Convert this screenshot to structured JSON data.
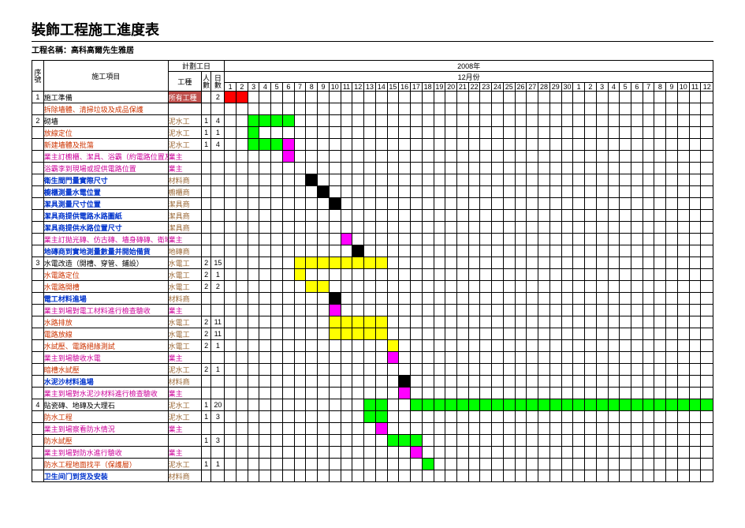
{
  "title": "裝飾工程施工進度表",
  "project_label": "工程名稱：",
  "project_name": "高科高爾先生雅居",
  "header": {
    "seq": "序號",
    "task": "施工項目",
    "plan": "計劃工日",
    "crew": "工種",
    "people": "人數",
    "days": "日數",
    "year": "2008年",
    "month": "12月份"
  },
  "calendar": {
    "days": [
      1,
      2,
      3,
      4,
      5,
      6,
      7,
      8,
      9,
      10,
      11,
      12,
      13,
      14,
      15,
      16,
      17,
      18,
      19,
      20,
      21,
      22,
      23,
      24,
      25,
      26,
      27,
      28,
      29,
      30,
      1,
      2,
      3,
      4,
      5,
      6,
      7,
      8,
      9,
      10,
      11,
      12
    ],
    "count": 42
  },
  "colors": {
    "red": "#ff0000",
    "green": "#00ff00",
    "yellow": "#ffff00",
    "black": "#000000",
    "magenta": "#ff00ff",
    "task_red": "#cc3300",
    "task_magenta": "#cc0099",
    "task_blue": "#0033cc",
    "task_brown": "#996633",
    "crew_brown": "#996633",
    "crew_magenta": "#cc0099",
    "hdr_bg": "#c0504d"
  },
  "rows": [
    {
      "seq": "1",
      "task": "施工準備",
      "task_color": "#000000",
      "crew": "所有工種",
      "crew_color": "#ffffff",
      "crew_bg": "#c0504d",
      "people": "",
      "days": "2",
      "bars": [
        {
          "start": 1,
          "len": 2,
          "color": "#ff0000"
        }
      ]
    },
    {
      "seq": "",
      "task": "拆除墻體、清掃垃圾及成品保護",
      "task_color": "#cc3300",
      "crew": "",
      "crew_color": "#000000",
      "people": "",
      "days": "",
      "bars": []
    },
    {
      "seq": "2",
      "task": "砌墻",
      "task_color": "#000000",
      "crew": "泥水工",
      "crew_color": "#996633",
      "people": "1",
      "days": "4",
      "bars": [
        {
          "start": 3,
          "len": 4,
          "color": "#00ff00"
        }
      ]
    },
    {
      "seq": "",
      "task": "放線定位",
      "task_color": "#cc3300",
      "crew": "泥水工",
      "crew_color": "#996633",
      "people": "1",
      "days": "1",
      "bars": [
        {
          "start": 3,
          "len": 1,
          "color": "#00ff00"
        }
      ]
    },
    {
      "seq": "",
      "task": "新建墻體及批蕩",
      "task_color": "#cc3300",
      "crew": "泥水工",
      "crew_color": "#996633",
      "people": "1",
      "days": "4",
      "bars": [
        {
          "start": 3,
          "len": 3,
          "color": "#00ff00"
        },
        {
          "start": 6,
          "len": 1,
          "color": "#ff00ff"
        }
      ]
    },
    {
      "seq": "",
      "task": "業主訂櫥櫃、潔具、浴霸（約電路位置及水路位置圖）",
      "task_color": "#cc0099",
      "crew": "業主",
      "crew_color": "#cc0099",
      "people": "",
      "days": "",
      "bars": [
        {
          "start": 6,
          "len": 1,
          "color": "#ff00ff"
        }
      ]
    },
    {
      "seq": "",
      "task": "浴霸李到現場或提供電路位置",
      "task_color": "#cc0099",
      "crew": "業主",
      "crew_color": "#cc0099",
      "people": "",
      "days": "",
      "bars": []
    },
    {
      "seq": "",
      "task": "衛生間門量實際尺寸",
      "task_color": "#0033cc",
      "bold": true,
      "crew": "材料商",
      "crew_color": "#996633",
      "people": "",
      "days": "",
      "bars": [
        {
          "start": 8,
          "len": 1,
          "color": "#000000"
        }
      ]
    },
    {
      "seq": "",
      "task": "櫥櫃測量水電位置",
      "task_color": "#0033cc",
      "bold": true,
      "crew": "櫥櫃商",
      "crew_color": "#996633",
      "people": "",
      "days": "",
      "bars": [
        {
          "start": 9,
          "len": 1,
          "color": "#000000"
        }
      ]
    },
    {
      "seq": "",
      "task": "潔具測量尺寸位置",
      "task_color": "#0033cc",
      "bold": true,
      "crew": "潔具商",
      "crew_color": "#996633",
      "people": "",
      "days": "",
      "bars": [
        {
          "start": 10,
          "len": 1,
          "color": "#000000"
        }
      ]
    },
    {
      "seq": "",
      "task": "潔具商提供電路水路圖紙",
      "task_color": "#0033cc",
      "bold": true,
      "crew": "潔具商",
      "crew_color": "#996633",
      "people": "",
      "days": "",
      "bars": []
    },
    {
      "seq": "",
      "task": "潔具商提供水路位置尺寸",
      "task_color": "#0033cc",
      "bold": true,
      "crew": "潔具商",
      "crew_color": "#996633",
      "people": "",
      "days": "",
      "bars": []
    },
    {
      "seq": "",
      "task": "業主訂拋光磚、仿古磚、墻身磚磚、衛地磚瓷片及大理石門檻、大理石窗臺",
      "task_color": "#cc0099",
      "crew": "業主",
      "crew_color": "#cc0099",
      "people": "",
      "days": "",
      "bars": [
        {
          "start": 11,
          "len": 1,
          "color": "#ff00ff"
        }
      ]
    },
    {
      "seq": "",
      "task": "地磚商到實地測量數量并開始備貨",
      "task_color": "#0033cc",
      "bold": true,
      "crew": "地磚商",
      "crew_color": "#996633",
      "people": "",
      "days": "",
      "bars": [
        {
          "start": 12,
          "len": 1,
          "color": "#000000"
        }
      ]
    },
    {
      "seq": "3",
      "task": "水電改造（開槽、穿管、鋪設）",
      "task_color": "#000000",
      "crew": "水電工",
      "crew_color": "#996633",
      "people": "2",
      "days": "15",
      "bars": [
        {
          "start": 7,
          "len": 8,
          "color": "#ffff00"
        }
      ]
    },
    {
      "seq": "",
      "task": "水電路定位",
      "task_color": "#cc3300",
      "crew": "水電工",
      "crew_color": "#996633",
      "people": "2",
      "days": "1",
      "bars": [
        {
          "start": 7,
          "len": 1,
          "color": "#ffff00"
        }
      ]
    },
    {
      "seq": "",
      "task": "水電路開槽",
      "task_color": "#cc3300",
      "crew": "水電工",
      "crew_color": "#996633",
      "people": "2",
      "days": "2",
      "bars": [
        {
          "start": 8,
          "len": 2,
          "color": "#ffff00"
        }
      ]
    },
    {
      "seq": "",
      "task": "電工材料進場",
      "task_color": "#0033cc",
      "bold": true,
      "crew": "材料商",
      "crew_color": "#996633",
      "people": "",
      "days": "",
      "bars": [
        {
          "start": 10,
          "len": 1,
          "color": "#000000"
        }
      ]
    },
    {
      "seq": "",
      "task": "業主到場對電工材料進行檢查驗收",
      "task_color": "#cc0099",
      "crew": "業主",
      "crew_color": "#cc0099",
      "people": "",
      "days": "",
      "bars": [
        {
          "start": 10,
          "len": 1,
          "color": "#ff00ff"
        }
      ]
    },
    {
      "seq": "",
      "task": "水路排放",
      "task_color": "#cc3300",
      "crew": "水電工",
      "crew_color": "#996633",
      "people": "2",
      "days": "11",
      "bars": [
        {
          "start": 10,
          "len": 5,
          "color": "#ffff00"
        }
      ]
    },
    {
      "seq": "",
      "task": "電路放線",
      "task_color": "#cc3300",
      "crew": "水電工",
      "crew_color": "#996633",
      "people": "2",
      "days": "11",
      "bars": [
        {
          "start": 10,
          "len": 5,
          "color": "#ffff00"
        }
      ]
    },
    {
      "seq": "",
      "task": "水試壓、電路絕緣測試",
      "task_color": "#cc3300",
      "crew": "水電工",
      "crew_color": "#996633",
      "people": "2",
      "days": "1",
      "bars": [
        {
          "start": 15,
          "len": 1,
          "color": "#ffff00"
        }
      ]
    },
    {
      "seq": "",
      "task": "業主到場驗收水電",
      "task_color": "#cc0099",
      "crew": "業主",
      "crew_color": "#cc0099",
      "people": "",
      "days": "",
      "bars": [
        {
          "start": 15,
          "len": 1,
          "color": "#ff00ff"
        }
      ]
    },
    {
      "seq": "",
      "task": "暗槽水試壓",
      "task_color": "#cc3300",
      "crew": "泥水工",
      "crew_color": "#996633",
      "people": "2",
      "days": "1",
      "bars": []
    },
    {
      "seq": "",
      "task": "水泥沙材料進場",
      "task_color": "#0033cc",
      "bold": true,
      "crew": "材料商",
      "crew_color": "#996633",
      "people": "",
      "days": "",
      "bars": [
        {
          "start": 16,
          "len": 1,
          "color": "#000000"
        }
      ]
    },
    {
      "seq": "",
      "task": "業主到場對水泥沙材料進行檢查驗收",
      "task_color": "#cc0099",
      "crew": "業主",
      "crew_color": "#cc0099",
      "people": "",
      "days": "",
      "bars": [
        {
          "start": 16,
          "len": 1,
          "color": "#ff00ff"
        }
      ]
    },
    {
      "seq": "4",
      "task": "貼瓷磚、地磚及大理石",
      "task_color": "#000000",
      "crew": "泥水工",
      "crew_color": "#996633",
      "people": "1",
      "days": "20",
      "bars": [
        {
          "start": 13,
          "len": 2,
          "color": "#00ff00"
        },
        {
          "start": 17,
          "len": 26,
          "color": "#00ff00"
        }
      ]
    },
    {
      "seq": "",
      "task": "防水工程",
      "task_color": "#cc3300",
      "crew": "泥水工",
      "crew_color": "#996633",
      "people": "1",
      "days": "3",
      "bars": [
        {
          "start": 13,
          "len": 2,
          "color": "#00ff00"
        }
      ]
    },
    {
      "seq": "",
      "task": "業主到場察看防水情況",
      "task_color": "#cc0099",
      "crew": "業主",
      "crew_color": "#cc0099",
      "people": "",
      "days": "",
      "bars": [
        {
          "start": 14,
          "len": 1,
          "color": "#ff00ff"
        }
      ]
    },
    {
      "seq": "",
      "task": "防水試壓",
      "task_color": "#cc3300",
      "crew": "",
      "crew_color": "#000000",
      "people": "1",
      "days": "3",
      "bars": [
        {
          "start": 15,
          "len": 3,
          "color": "#00ff00"
        }
      ]
    },
    {
      "seq": "",
      "task": "業主到場對防水進行驗收",
      "task_color": "#cc0099",
      "crew": "業主",
      "crew_color": "#cc0099",
      "people": "",
      "days": "",
      "bars": [
        {
          "start": 17,
          "len": 1,
          "color": "#ff00ff"
        }
      ]
    },
    {
      "seq": "",
      "task": "防水工程地面找平（保護層）",
      "task_color": "#cc3300",
      "crew": "泥水工",
      "crew_color": "#996633",
      "people": "1",
      "days": "1",
      "bars": [
        {
          "start": 18,
          "len": 1,
          "color": "#00ff00"
        }
      ]
    },
    {
      "seq": "",
      "task": "卫生间门到货及安装",
      "task_color": "#0033cc",
      "bold": true,
      "crew": "材料商",
      "crew_color": "#996633",
      "people": "",
      "days": "",
      "bars": []
    }
  ]
}
